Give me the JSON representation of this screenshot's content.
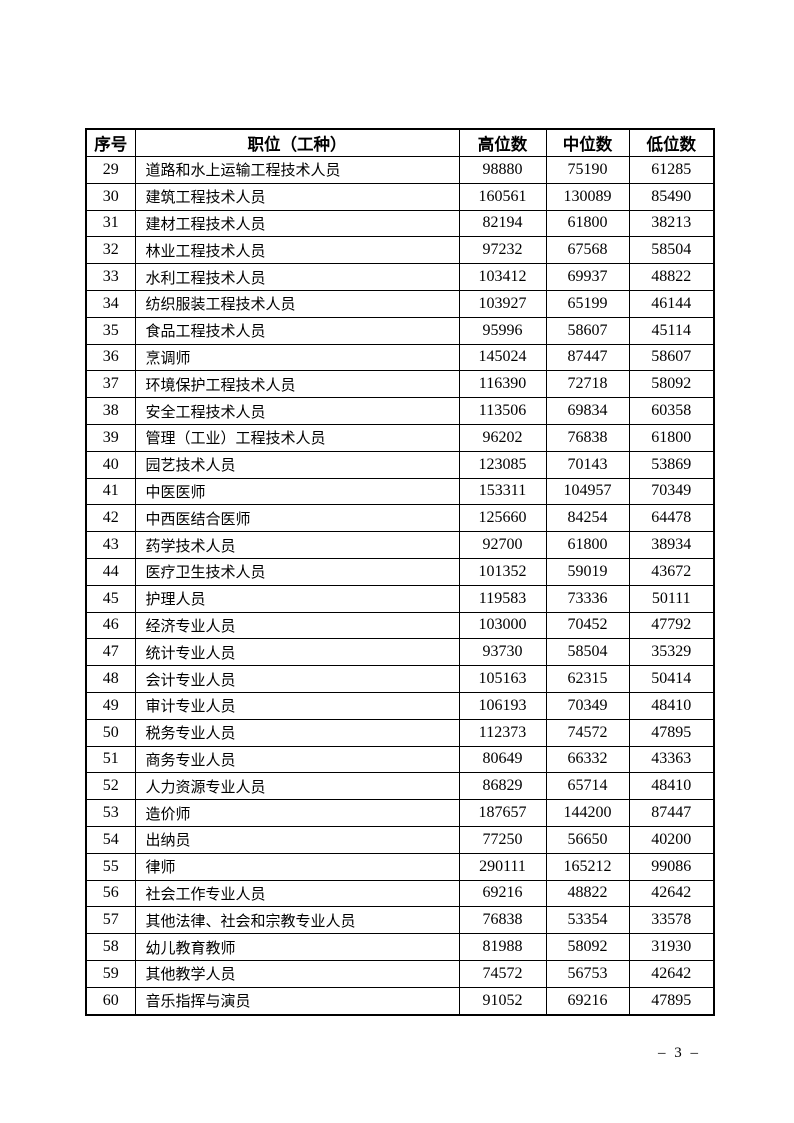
{
  "page": {
    "footer_page_number": "– 3 –"
  },
  "table": {
    "headers": [
      "序号",
      "职位（工种）",
      "高位数",
      "中位数",
      "低位数"
    ],
    "rows": [
      [
        "29",
        "道路和水上运输工程技术人员",
        "98880",
        "75190",
        "61285"
      ],
      [
        "30",
        "建筑工程技术人员",
        "160561",
        "130089",
        "85490"
      ],
      [
        "31",
        "建材工程技术人员",
        "82194",
        "61800",
        "38213"
      ],
      [
        "32",
        "林业工程技术人员",
        "97232",
        "67568",
        "58504"
      ],
      [
        "33",
        "水利工程技术人员",
        "103412",
        "69937",
        "48822"
      ],
      [
        "34",
        "纺织服装工程技术人员",
        "103927",
        "65199",
        "46144"
      ],
      [
        "35",
        "食品工程技术人员",
        "95996",
        "58607",
        "45114"
      ],
      [
        "36",
        "烹调师",
        "145024",
        "87447",
        "58607"
      ],
      [
        "37",
        "环境保护工程技术人员",
        "116390",
        "72718",
        "58092"
      ],
      [
        "38",
        "安全工程技术人员",
        "113506",
        "69834",
        "60358"
      ],
      [
        "39",
        "管理（工业）工程技术人员",
        "96202",
        "76838",
        "61800"
      ],
      [
        "40",
        "园艺技术人员",
        "123085",
        "70143",
        "53869"
      ],
      [
        "41",
        "中医医师",
        "153311",
        "104957",
        "70349"
      ],
      [
        "42",
        "中西医结合医师",
        "125660",
        "84254",
        "64478"
      ],
      [
        "43",
        "药学技术人员",
        "92700",
        "61800",
        "38934"
      ],
      [
        "44",
        "医疗卫生技术人员",
        "101352",
        "59019",
        "43672"
      ],
      [
        "45",
        "护理人员",
        "119583",
        "73336",
        "50111"
      ],
      [
        "46",
        "经济专业人员",
        "103000",
        "70452",
        "47792"
      ],
      [
        "47",
        "统计专业人员",
        "93730",
        "58504",
        "35329"
      ],
      [
        "48",
        "会计专业人员",
        "105163",
        "62315",
        "50414"
      ],
      [
        "49",
        "审计专业人员",
        "106193",
        "70349",
        "48410"
      ],
      [
        "50",
        "税务专业人员",
        "112373",
        "74572",
        "47895"
      ],
      [
        "51",
        "商务专业人员",
        "80649",
        "66332",
        "43363"
      ],
      [
        "52",
        "人力资源专业人员",
        "86829",
        "65714",
        "48410"
      ],
      [
        "53",
        "造价师",
        "187657",
        "144200",
        "87447"
      ],
      [
        "54",
        "出纳员",
        "77250",
        "56650",
        "40200"
      ],
      [
        "55",
        "律师",
        "290111",
        "165212",
        "99086"
      ],
      [
        "56",
        "社会工作专业人员",
        "69216",
        "48822",
        "42642"
      ],
      [
        "57",
        "其他法律、社会和宗教专业人员",
        "76838",
        "53354",
        "33578"
      ],
      [
        "58",
        "幼儿教育教师",
        "81988",
        "58092",
        "31930"
      ],
      [
        "59",
        "其他教学人员",
        "74572",
        "56753",
        "42642"
      ],
      [
        "60",
        "音乐指挥与演员",
        "91052",
        "69216",
        "47895"
      ]
    ]
  }
}
